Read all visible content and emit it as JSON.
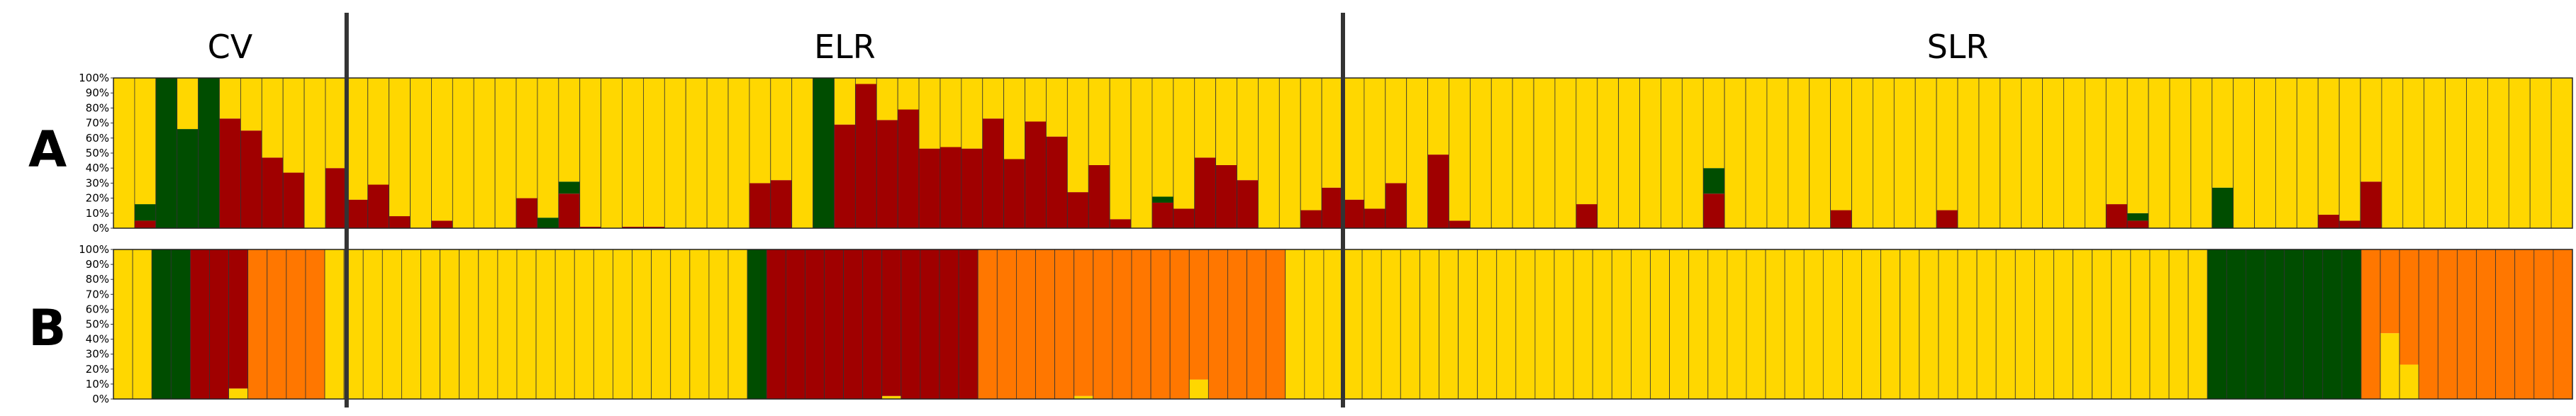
{
  "colors": {
    "yellow": "#FFD700",
    "red": "#A00000",
    "green": "#004D00",
    "orange": "#FF7700",
    "bar_outline": "#333333",
    "divider": "#333333"
  },
  "chart_data": [
    {
      "panel": "A",
      "type": "bar",
      "stacked": true,
      "ylim": [
        0,
        100
      ],
      "yticks": [
        "0%",
        "10%",
        "20%",
        "30%",
        "40%",
        "50%",
        "60%",
        "70%",
        "80%",
        "90%",
        "100%"
      ],
      "groups": [
        {
          "label": "CV",
          "first_bar": 1,
          "last_bar": 11
        },
        {
          "label": "ELR",
          "first_bar": 12,
          "last_bar": 58
        },
        {
          "label": "SLR",
          "first_bar": 59,
          "last_bar": 116
        }
      ],
      "stack_order": [
        "red",
        "green",
        "yellow"
      ],
      "series": [
        {
          "color": "red",
          "values": [
            0,
            5,
            0,
            0,
            0,
            73,
            65,
            47,
            37,
            0,
            40,
            19,
            29,
            8,
            0,
            5,
            0,
            0,
            0,
            20,
            0,
            23,
            1,
            0,
            1,
            1,
            0,
            0,
            0,
            0,
            30,
            32,
            0,
            0,
            69,
            96,
            72,
            79,
            53,
            54,
            53,
            73,
            46,
            71,
            61,
            24,
            42,
            6,
            0,
            17,
            13,
            47,
            42,
            32,
            0,
            0,
            12,
            27,
            19,
            13,
            30,
            0,
            49,
            5,
            0,
            0,
            0,
            0,
            0,
            16,
            0,
            0,
            0,
            0,
            0,
            23,
            0,
            0,
            0,
            0,
            0,
            12,
            0,
            0,
            0,
            0,
            12,
            0,
            0,
            0,
            0,
            0,
            0,
            0,
            16,
            5,
            0,
            0,
            0,
            0,
            0,
            0,
            0,
            0,
            9,
            5,
            31,
            0,
            0,
            0,
            0,
            0,
            0,
            0,
            0,
            0
          ]
        },
        {
          "color": "green",
          "values": [
            0,
            11,
            100,
            66,
            100,
            0,
            0,
            0,
            0,
            0,
            0,
            0,
            0,
            0,
            0,
            0,
            0,
            0,
            0,
            0,
            7,
            8,
            0,
            0,
            0,
            0,
            0,
            0,
            0,
            0,
            0,
            0,
            0,
            100,
            0,
            0,
            0,
            0,
            0,
            0,
            0,
            0,
            0,
            0,
            0,
            0,
            0,
            0,
            0,
            4,
            0,
            0,
            0,
            0,
            0,
            0,
            0,
            0,
            0,
            0,
            0,
            0,
            0,
            0,
            0,
            0,
            0,
            0,
            0,
            0,
            0,
            0,
            0,
            0,
            0,
            17,
            0,
            0,
            0,
            0,
            0,
            0,
            0,
            0,
            0,
            0,
            0,
            0,
            0,
            0,
            0,
            0,
            0,
            0,
            0,
            5,
            0,
            0,
            0,
            27,
            0,
            0,
            0,
            0,
            0,
            0,
            0,
            0,
            0,
            0,
            0,
            0,
            0,
            0,
            0,
            0
          ]
        },
        {
          "color": "yellow",
          "values": [
            100,
            84,
            0,
            34,
            0,
            27,
            35,
            53,
            63,
            100,
            60,
            81,
            71,
            92,
            100,
            95,
            100,
            100,
            100,
            80,
            93,
            69,
            99,
            100,
            99,
            99,
            100,
            100,
            100,
            100,
            70,
            68,
            100,
            0,
            31,
            4,
            28,
            21,
            47,
            46,
            47,
            27,
            54,
            29,
            39,
            76,
            58,
            94,
            100,
            79,
            87,
            53,
            58,
            68,
            100,
            100,
            88,
            73,
            81,
            87,
            70,
            100,
            51,
            95,
            100,
            100,
            100,
            100,
            100,
            84,
            100,
            100,
            100,
            100,
            100,
            60,
            100,
            100,
            100,
            100,
            100,
            88,
            100,
            100,
            100,
            100,
            88,
            100,
            100,
            100,
            100,
            100,
            100,
            100,
            84,
            90,
            100,
            100,
            100,
            73,
            100,
            100,
            100,
            100,
            91,
            95,
            69,
            100,
            100,
            100,
            100,
            100,
            100,
            100,
            100,
            100
          ]
        }
      ]
    },
    {
      "panel": "B",
      "type": "bar",
      "stacked": true,
      "ylim": [
        0,
        100
      ],
      "yticks": [
        "0%",
        "10%",
        "20%",
        "30%",
        "40%",
        "50%",
        "60%",
        "70%",
        "80%",
        "90%",
        "100%"
      ],
      "stack_order": [
        "yellow",
        "red",
        "green",
        "orange"
      ],
      "series": [
        {
          "color": "yellow",
          "values": [
            100,
            100,
            0,
            0,
            0,
            0,
            7,
            0,
            0,
            0,
            0,
            100,
            100,
            100,
            100,
            100,
            100,
            100,
            100,
            100,
            100,
            100,
            100,
            100,
            100,
            100,
            100,
            100,
            100,
            100,
            100,
            100,
            100,
            0,
            0,
            0,
            0,
            0,
            0,
            0,
            2,
            0,
            0,
            0,
            0,
            0,
            0,
            0,
            0,
            0,
            2,
            0,
            0,
            0,
            0,
            0,
            13,
            0,
            0,
            0,
            0,
            100,
            100,
            100,
            100,
            100,
            100,
            100,
            100,
            100,
            100,
            100,
            100,
            100,
            100,
            100,
            100,
            100,
            100,
            100,
            100,
            100,
            100,
            100,
            100,
            100,
            100,
            100,
            100,
            100,
            100,
            100,
            100,
            100,
            100,
            100,
            100,
            100,
            100,
            100,
            100,
            100,
            100,
            100,
            100,
            100,
            100,
            100,
            100,
            0,
            0,
            0,
            0,
            0,
            0,
            0,
            0,
            0,
            44,
            23,
            0,
            0,
            0,
            0,
            0,
            0,
            0,
            0
          ]
        },
        {
          "color": "red",
          "values": [
            0,
            0,
            0,
            0,
            100,
            100,
            93,
            0,
            0,
            0,
            0,
            0,
            0,
            0,
            0,
            0,
            0,
            0,
            0,
            0,
            0,
            0,
            0,
            0,
            0,
            0,
            0,
            0,
            0,
            0,
            0,
            0,
            0,
            0,
            100,
            100,
            100,
            100,
            100,
            100,
            98,
            100,
            100,
            100,
            100,
            0,
            0,
            0,
            0,
            0,
            0,
            0,
            0,
            0,
            0,
            0,
            0,
            0,
            0,
            0,
            0,
            0,
            0,
            0,
            0,
            0,
            0,
            0,
            0,
            0,
            0,
            0,
            0,
            0,
            0,
            0,
            0,
            0,
            0,
            0,
            0,
            0,
            0,
            0,
            0,
            0,
            0,
            0,
            0,
            0,
            0,
            0,
            0,
            0,
            0,
            0,
            0,
            0,
            0,
            0,
            0,
            0,
            0,
            0,
            0,
            0,
            0,
            0,
            0,
            0,
            0,
            0,
            0,
            0,
            0,
            0,
            0,
            0,
            0,
            0,
            0,
            0,
            0,
            0,
            0,
            0,
            0,
            0,
            0,
            0
          ]
        },
        {
          "color": "green",
          "values": [
            0,
            0,
            100,
            100,
            0,
            0,
            0,
            0,
            0,
            0,
            0,
            0,
            0,
            0,
            0,
            0,
            0,
            0,
            0,
            0,
            0,
            0,
            0,
            0,
            0,
            0,
            0,
            0,
            0,
            0,
            0,
            0,
            0,
            100,
            0,
            0,
            0,
            0,
            0,
            0,
            0,
            0,
            0,
            0,
            0,
            0,
            0,
            0,
            0,
            0,
            0,
            0,
            0,
            0,
            0,
            0,
            0,
            0,
            0,
            0,
            0,
            0,
            0,
            0,
            0,
            0,
            0,
            0,
            0,
            0,
            0,
            0,
            0,
            0,
            0,
            0,
            0,
            0,
            0,
            0,
            0,
            0,
            0,
            0,
            0,
            0,
            0,
            0,
            0,
            0,
            0,
            0,
            0,
            0,
            0,
            0,
            0,
            0,
            0,
            0,
            0,
            0,
            0,
            0,
            0,
            0,
            0,
            0,
            0,
            100,
            100,
            100,
            100,
            100,
            100,
            100,
            100,
            0,
            0,
            0,
            0,
            0,
            0,
            0,
            0,
            0,
            0,
            0,
            0,
            0
          ]
        },
        {
          "color": "orange",
          "values": [
            0,
            0,
            0,
            0,
            0,
            0,
            0,
            100,
            100,
            100,
            100,
            0,
            0,
            0,
            0,
            0,
            0,
            0,
            0,
            0,
            0,
            0,
            0,
            0,
            0,
            0,
            0,
            0,
            0,
            0,
            0,
            0,
            0,
            0,
            0,
            0,
            0,
            0,
            0,
            0,
            0,
            0,
            0,
            0,
            0,
            100,
            100,
            100,
            100,
            100,
            98,
            100,
            100,
            100,
            100,
            100,
            87,
            100,
            100,
            100,
            100,
            0,
            0,
            0,
            0,
            0,
            0,
            0,
            0,
            0,
            0,
            0,
            0,
            0,
            0,
            0,
            0,
            0,
            0,
            0,
            0,
            0,
            0,
            0,
            0,
            0,
            0,
            0,
            0,
            0,
            0,
            0,
            0,
            0,
            0,
            0,
            0,
            0,
            0,
            0,
            0,
            0,
            0,
            0,
            0,
            0,
            0,
            0,
            0,
            0,
            0,
            0,
            0,
            0,
            0,
            0,
            0,
            100,
            56,
            77,
            100,
            100,
            100,
            100,
            100,
            100,
            100,
            100
          ]
        }
      ]
    }
  ]
}
